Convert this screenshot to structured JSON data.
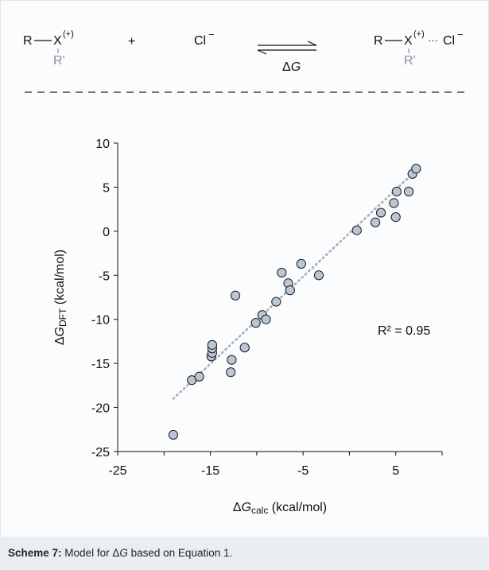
{
  "scheme": {
    "reactant_left": "R",
    "reactant_x": "X",
    "reactant_charge": "(+)",
    "reactant_sub": "R'",
    "plus": "+",
    "anion": "Cl",
    "anion_charge": "−",
    "arrow_label_delta": "Δ",
    "arrow_label_g": "G",
    "product_left": "R",
    "product_x": "X",
    "product_charge": "(+)",
    "product_dots": "···",
    "product_cl": "Cl",
    "product_cl_charge": "−",
    "product_sub": "R'"
  },
  "caption": {
    "bold": "Scheme 7:",
    "pre": " Model for ",
    "delta": "Δ",
    "g": "G",
    "post": " based on Equation 1."
  },
  "colors": {
    "marker_fill": "#b8c6d6",
    "marker_stroke": "#1a1a1a",
    "trend": "#a6aeb6"
  },
  "chart_data": {
    "type": "scatter",
    "xlabel": {
      "delta": "Δ",
      "g": "G",
      "sub": "calc",
      "unit": " (kcal/mol)"
    },
    "ylabel": {
      "delta": "Δ",
      "g": "G",
      "sub": "DFT",
      "unit": " (kcal/mol)"
    },
    "xlim": [
      -25,
      10
    ],
    "ylim": [
      -25,
      10
    ],
    "xticks": [
      -25,
      -15,
      -5,
      5
    ],
    "yticks": [
      10,
      5,
      0,
      -5,
      -10,
      -15,
      -20,
      -25
    ],
    "annotation": "R² = 0.95",
    "trendline": {
      "x": [
        -19,
        7.2
      ],
      "y": [
        -19,
        6.9
      ],
      "style": "dotted"
    },
    "points": [
      {
        "x": -19.0,
        "y": -23.1
      },
      {
        "x": -17.0,
        "y": -16.9
      },
      {
        "x": -16.2,
        "y": -16.5
      },
      {
        "x": -14.9,
        "y": -14.2
      },
      {
        "x": -14.8,
        "y": -13.8
      },
      {
        "x": -14.8,
        "y": -13.3
      },
      {
        "x": -14.8,
        "y": -12.9
      },
      {
        "x": -12.8,
        "y": -16.0
      },
      {
        "x": -12.7,
        "y": -14.6
      },
      {
        "x": -12.3,
        "y": -7.3
      },
      {
        "x": -11.3,
        "y": -13.2
      },
      {
        "x": -10.1,
        "y": -10.4
      },
      {
        "x": -9.4,
        "y": -9.5
      },
      {
        "x": -9.0,
        "y": -10.0
      },
      {
        "x": -7.9,
        "y": -8.0
      },
      {
        "x": -7.3,
        "y": -4.7
      },
      {
        "x": -6.6,
        "y": -5.9
      },
      {
        "x": -6.4,
        "y": -6.7
      },
      {
        "x": -5.2,
        "y": -3.7
      },
      {
        "x": -3.3,
        "y": -5.0
      },
      {
        "x": 0.8,
        "y": 0.1
      },
      {
        "x": 2.8,
        "y": 1.0
      },
      {
        "x": 3.4,
        "y": 2.1
      },
      {
        "x": 4.8,
        "y": 3.2
      },
      {
        "x": 5.1,
        "y": 4.5
      },
      {
        "x": 5.0,
        "y": 1.6
      },
      {
        "x": 6.4,
        "y": 4.5
      },
      {
        "x": 6.8,
        "y": 6.5
      },
      {
        "x": 7.2,
        "y": 7.1
      }
    ]
  }
}
